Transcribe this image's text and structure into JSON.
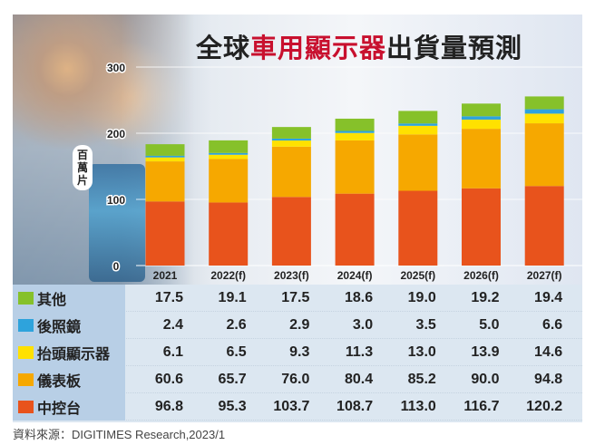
{
  "title": {
    "part1": "全球",
    "part2": "車用顯示器",
    "part3": "出貨量預測"
  },
  "source": "資料來源：DIGITIMES Research,2023/1",
  "chart_data": {
    "type": "stacked-bar",
    "title": "全球車用顯示器出貨量預測",
    "ylabel": "百萬片",
    "ylim": [
      0,
      300
    ],
    "yticks": [
      "0",
      "100",
      "200",
      "300"
    ],
    "grid": true,
    "categories": [
      "2021",
      "2022(f)",
      "2023(f)",
      "2024(f)",
      "2025(f)",
      "2026(f)",
      "2027(f)"
    ],
    "series": [
      {
        "name": "中控台",
        "color": "#e8531c",
        "values": [
          96.8,
          95.3,
          103.7,
          108.7,
          113.0,
          116.7,
          120.2
        ]
      },
      {
        "name": "儀表板",
        "color": "#f6a800",
        "values": [
          60.6,
          65.7,
          76.0,
          80.4,
          85.2,
          90.0,
          94.8
        ]
      },
      {
        "name": "抬頭顯示器",
        "color": "#ffe100",
        "values": [
          6.1,
          6.5,
          9.3,
          11.3,
          13.0,
          13.9,
          14.6
        ]
      },
      {
        "name": "後照鏡",
        "color": "#2ea3dc",
        "values": [
          2.4,
          2.6,
          2.9,
          3.0,
          3.5,
          5.0,
          6.6
        ]
      },
      {
        "name": "其他",
        "color": "#86c12a",
        "values": [
          17.5,
          19.1,
          17.5,
          18.6,
          19.0,
          19.2,
          19.4
        ]
      }
    ],
    "table_labels": {
      "r0": "其他",
      "r1": "後照鏡",
      "r2": "抬頭顯示器",
      "r3": "儀表板",
      "r4": "中控台"
    },
    "table_values": {
      "r0": [
        "17.5",
        "19.1",
        "17.5",
        "18.6",
        "19.0",
        "19.2",
        "19.4"
      ],
      "r1": [
        "2.4",
        "2.6",
        "2.9",
        "3.0",
        "3.5",
        "5.0",
        "6.6"
      ],
      "r2": [
        "6.1",
        "6.5",
        "9.3",
        "11.3",
        "13.0",
        "13.9",
        "14.6"
      ],
      "r3": [
        "60.6",
        "65.7",
        "76.0",
        "80.4",
        "85.2",
        "90.0",
        "94.8"
      ],
      "r4": [
        "96.8",
        "95.3",
        "103.7",
        "108.7",
        "113.0",
        "116.7",
        "120.2"
      ]
    }
  }
}
